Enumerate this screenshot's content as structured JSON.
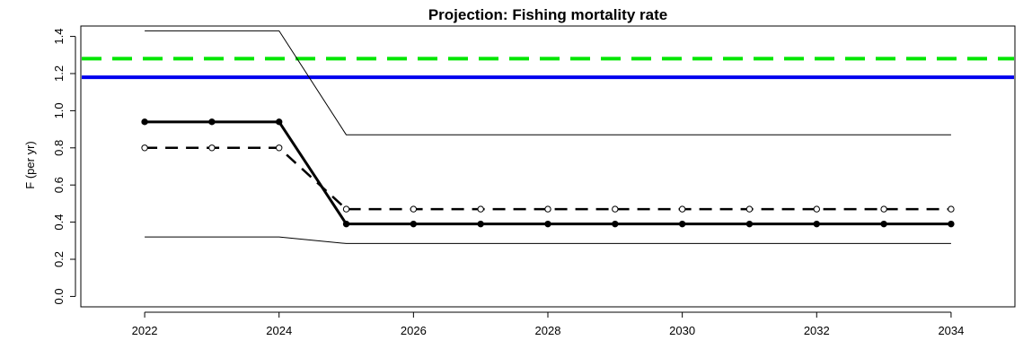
{
  "chart_data": {
    "type": "line",
    "title": "Projection:  Fishing mortality rate",
    "xlabel": "",
    "ylabel": "F (per yr)",
    "xlim": [
      2021.05,
      2034.95
    ],
    "ylim": [
      -0.056,
      1.456
    ],
    "x_ticks": [
      2022,
      2024,
      2026,
      2028,
      2030,
      2032,
      2034
    ],
    "y_ticks": [
      0.0,
      0.2,
      0.4,
      0.6,
      0.8,
      1.0,
      1.2,
      1.4
    ],
    "y_tick_labels": [
      "0.0",
      "0.2",
      "0.4",
      "0.6",
      "0.8",
      "1.0",
      "1.2",
      "1.4"
    ],
    "grid": false,
    "reference_lines": [
      {
        "y": 1.28,
        "color": "#00e600",
        "style": "dashed",
        "width": 4
      },
      {
        "y": 1.18,
        "color": "#0000ee",
        "style": "solid",
        "width": 4
      }
    ],
    "series": [
      {
        "x": [
          2022,
          2023,
          2024,
          2025,
          2026,
          2027,
          2028,
          2029,
          2030,
          2031,
          2032,
          2033,
          2034
        ],
        "values": [
          1.43,
          1.43,
          1.43,
          0.87,
          0.87,
          0.87,
          0.87,
          0.87,
          0.87,
          0.87,
          0.87,
          0.87,
          0.87
        ],
        "color": "#000000",
        "style": "solid",
        "width": 1,
        "marker": "none"
      },
      {
        "x": [
          2022,
          2023,
          2024,
          2025,
          2026,
          2027,
          2028,
          2029,
          2030,
          2031,
          2032,
          2033,
          2034
        ],
        "values": [
          0.32,
          0.32,
          0.32,
          0.285,
          0.285,
          0.285,
          0.285,
          0.285,
          0.285,
          0.285,
          0.285,
          0.285,
          0.285
        ],
        "color": "#000000",
        "style": "solid",
        "width": 1,
        "marker": "none"
      },
      {
        "x": [
          2022,
          2023,
          2024,
          2025,
          2026,
          2027,
          2028,
          2029,
          2030,
          2031,
          2032,
          2033,
          2034
        ],
        "values": [
          0.8,
          0.8,
          0.8,
          0.47,
          0.47,
          0.47,
          0.47,
          0.47,
          0.47,
          0.47,
          0.47,
          0.47,
          0.47
        ],
        "color": "#000000",
        "style": "dashed",
        "width": 2.5,
        "marker": "open-circle"
      },
      {
        "x": [
          2022,
          2023,
          2024,
          2025,
          2026,
          2027,
          2028,
          2029,
          2030,
          2031,
          2032,
          2033,
          2034
        ],
        "values": [
          0.94,
          0.94,
          0.94,
          0.39,
          0.39,
          0.39,
          0.39,
          0.39,
          0.39,
          0.39,
          0.39,
          0.39,
          0.39
        ],
        "color": "#000000",
        "style": "solid",
        "width": 3,
        "marker": "filled-circle"
      }
    ]
  }
}
